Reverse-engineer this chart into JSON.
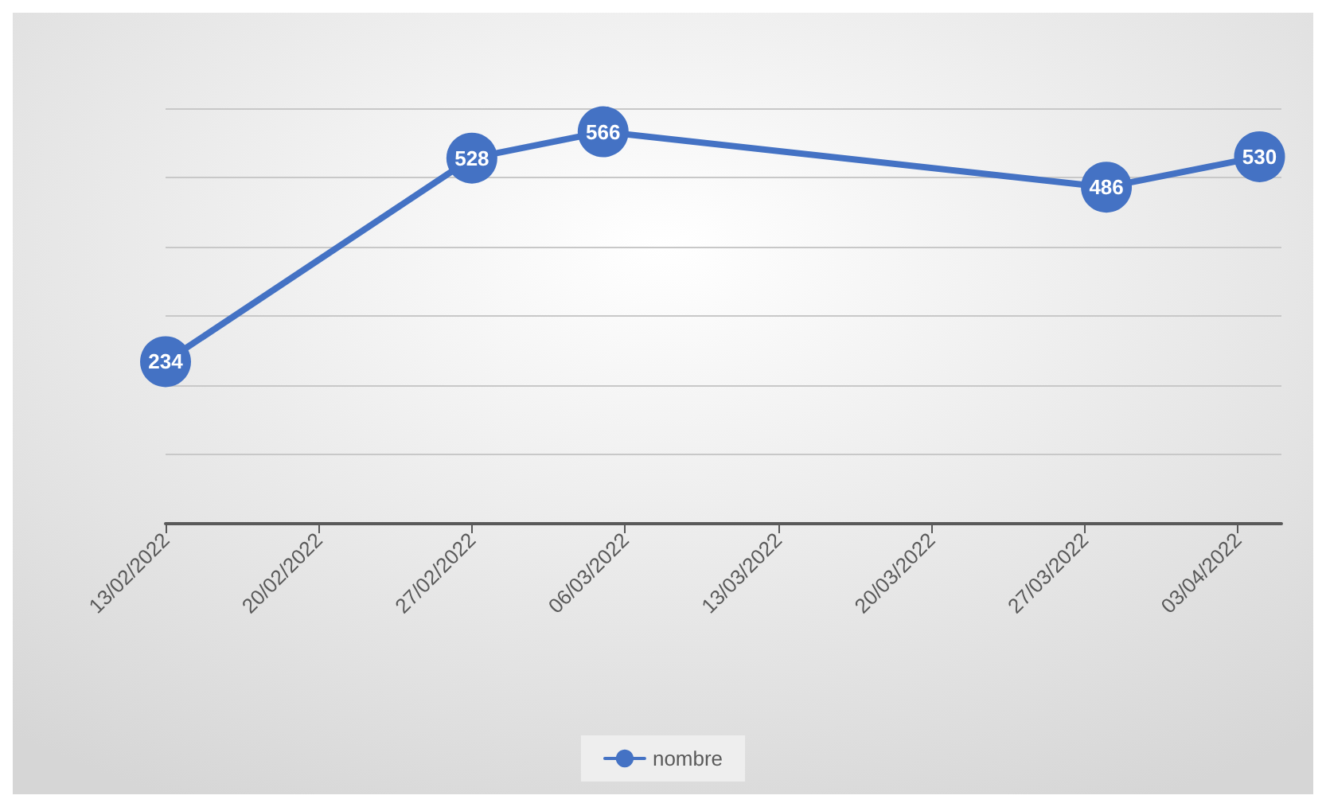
{
  "chart_data": {
    "type": "line",
    "x": [
      "2022-02-13",
      "2022-02-27",
      "2022-03-05",
      "2022-03-28",
      "2022-04-04"
    ],
    "series": [
      {
        "name": "nombre",
        "color": "#4472c4",
        "values": [
          234,
          528,
          566,
          486,
          530
        ]
      }
    ],
    "xlim": [
      "2022-02-13",
      "2022-04-05"
    ],
    "xticks": [
      {
        "value": "2022-02-13",
        "label": "13/02/2022"
      },
      {
        "value": "2022-02-20",
        "label": "20/02/2022"
      },
      {
        "value": "2022-02-27",
        "label": "27/02/2022"
      },
      {
        "value": "2022-03-06",
        "label": "06/03/2022"
      },
      {
        "value": "2022-03-13",
        "label": "13/03/2022"
      },
      {
        "value": "2022-03-20",
        "label": "20/03/2022"
      },
      {
        "value": "2022-03-27",
        "label": "27/03/2022"
      },
      {
        "value": "2022-04-03",
        "label": "03/04/2022"
      }
    ],
    "ylim": [
      0,
      600
    ],
    "yticks": [
      {
        "value": 0,
        "label": null
      },
      {
        "value": 100,
        "label": null
      },
      {
        "value": 200,
        "label": null
      },
      {
        "value": 300,
        "label": null
      },
      {
        "value": 400,
        "label": null
      },
      {
        "value": 500,
        "label": null
      },
      {
        "value": 600,
        "label": null
      }
    ],
    "tick_labels": "x",
    "grid": "y",
    "legend": "bottom",
    "marker": "circle",
    "line_style": "solid",
    "data_labels": true
  }
}
